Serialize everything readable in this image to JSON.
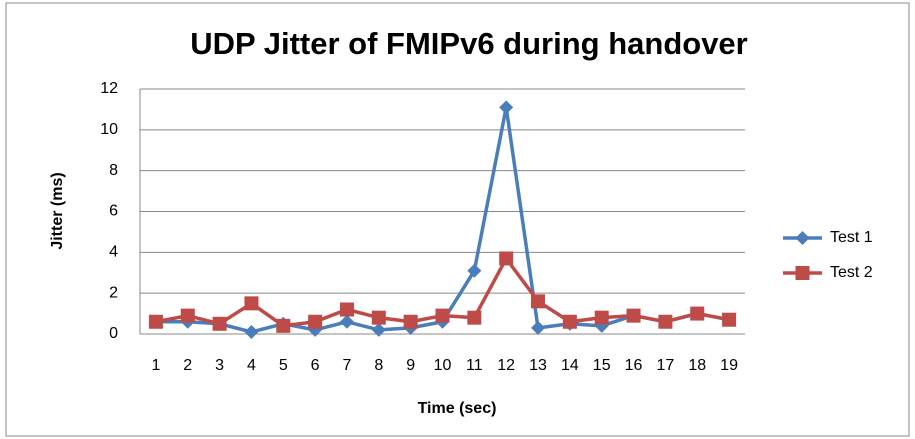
{
  "chart_data": {
    "type": "line",
    "title": "UDP Jitter of FMIPv6 during handover",
    "x_label": "Time (sec)",
    "y_label": "Jitter (ms)",
    "categories": [
      "1",
      "2",
      "3",
      "4",
      "5",
      "6",
      "7",
      "8",
      "9",
      "10",
      "11",
      "12",
      "13",
      "14",
      "15",
      "16",
      "17",
      "18",
      "19"
    ],
    "series": [
      {
        "name": "Test 1",
        "color": "#4a7ebb",
        "marker": "diamond",
        "values": [
          0.6,
          0.6,
          0.5,
          0.1,
          0.5,
          0.2,
          0.6,
          0.2,
          0.3,
          0.6,
          3.1,
          11.1,
          0.3,
          0.5,
          0.4,
          0.9,
          0.6,
          1.0,
          0.7
        ]
      },
      {
        "name": "Test 2",
        "color": "#be4b48",
        "marker": "square",
        "values": [
          0.6,
          0.9,
          0.5,
          1.5,
          0.4,
          0.6,
          1.2,
          0.8,
          0.6,
          0.9,
          0.8,
          3.7,
          1.6,
          0.6,
          0.8,
          0.9,
          0.6,
          1.0,
          0.7
        ]
      }
    ],
    "ylim": [
      0,
      12
    ],
    "yticks": [
      0,
      2,
      4,
      6,
      8,
      10,
      12
    ],
    "grid": true,
    "legend": "right"
  }
}
